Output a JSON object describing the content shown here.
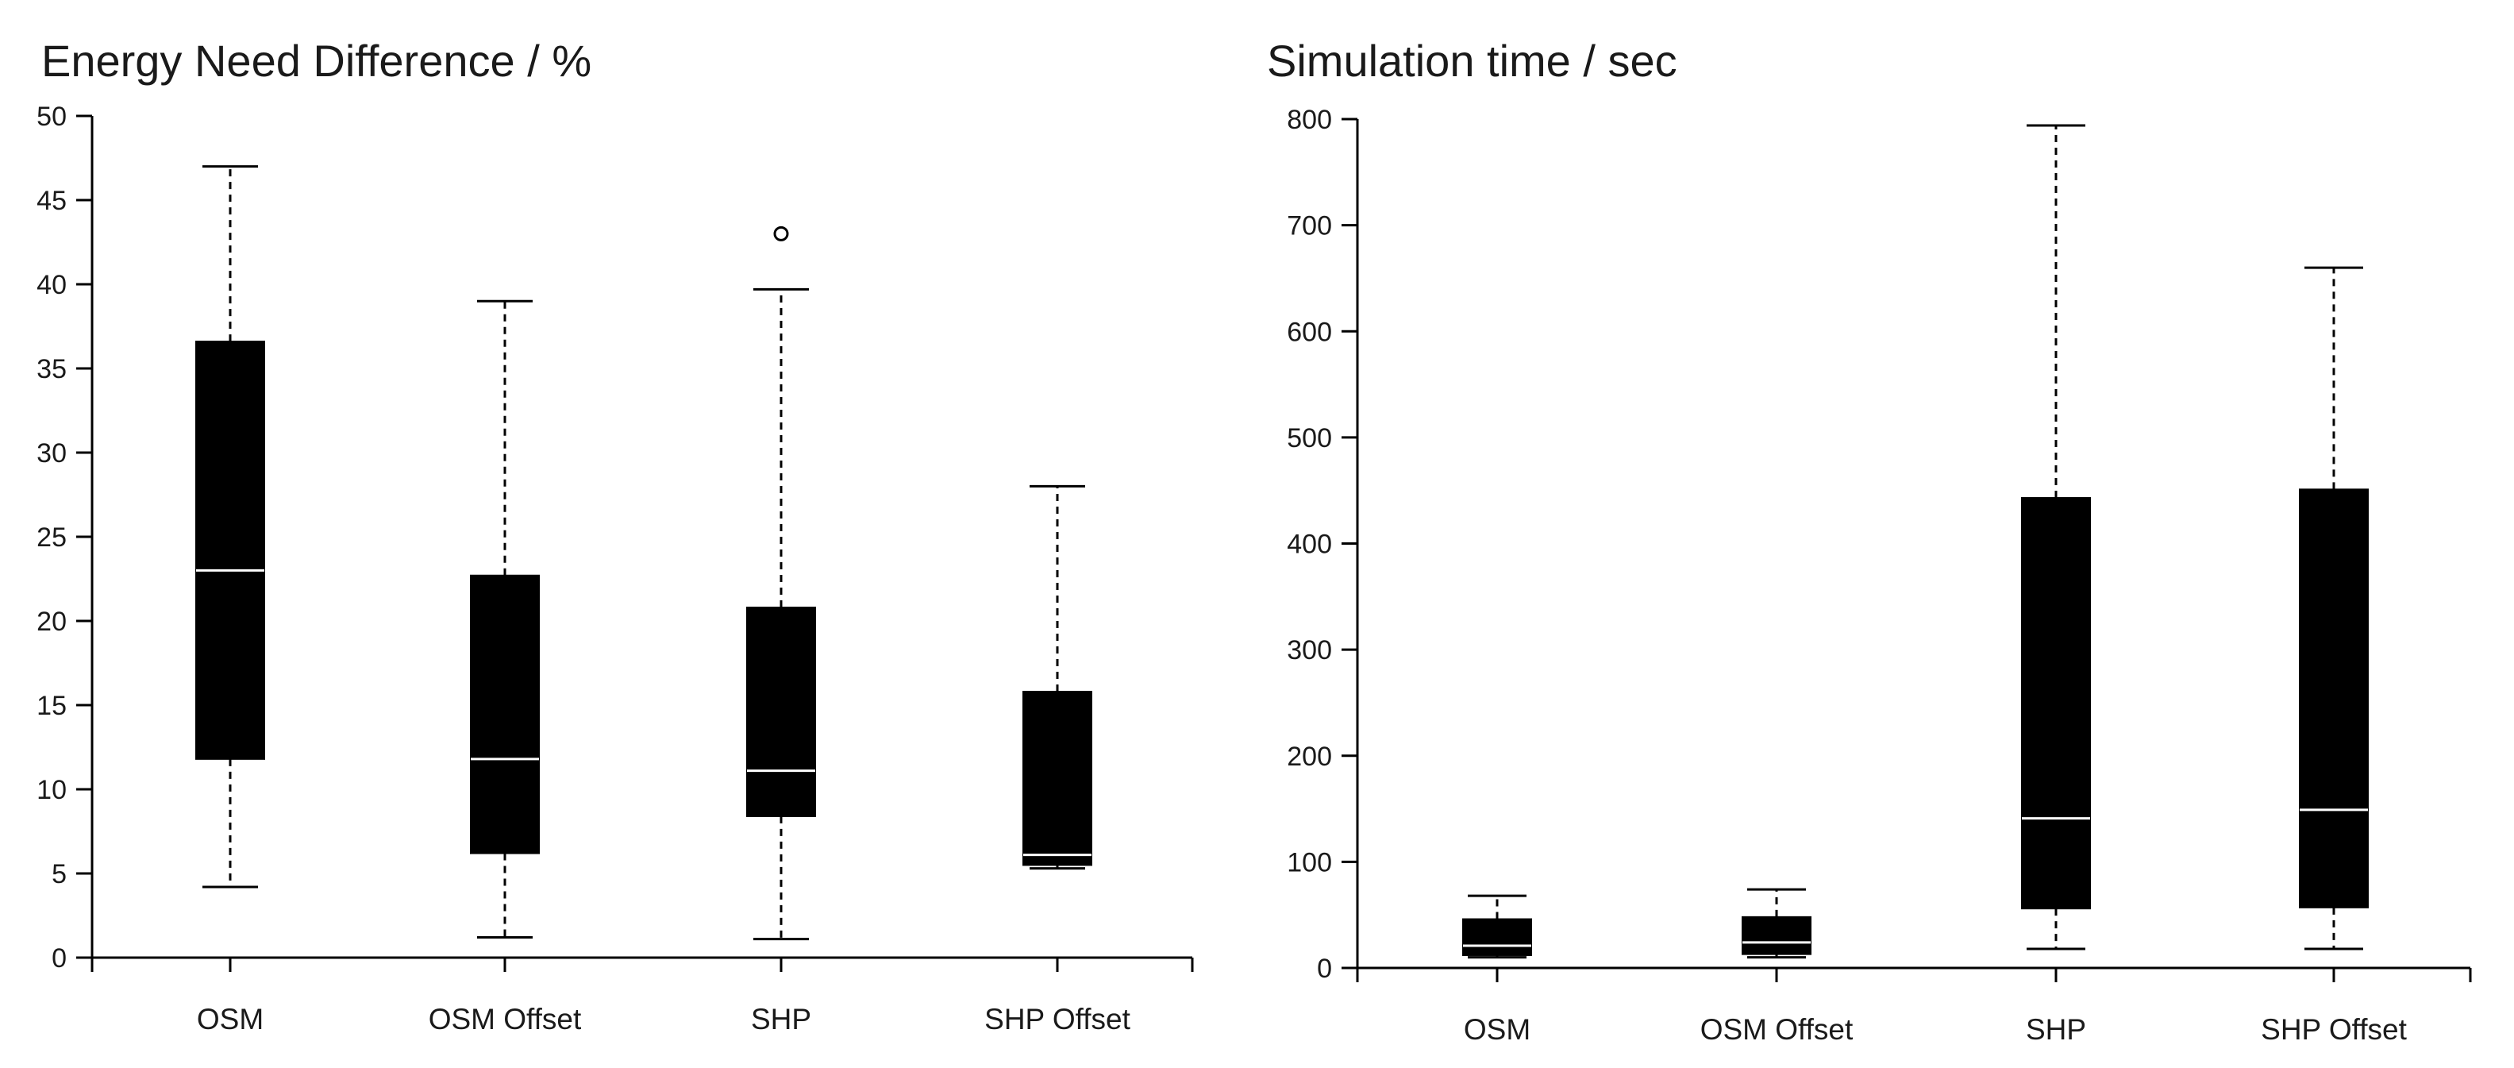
{
  "chart_data": [
    {
      "type": "box",
      "title": "Energy Need Difference / %",
      "xlabel": "",
      "ylabel": "",
      "ylim": [
        0,
        50
      ],
      "yticks": [
        0,
        5,
        10,
        15,
        20,
        25,
        30,
        35,
        40,
        45,
        50
      ],
      "categories": [
        "OSM",
        "OSM Offset",
        "SHP",
        "SHP Offset"
      ],
      "boxes": [
        {
          "name": "OSM",
          "whisker_low": 4.2,
          "q1": 11.8,
          "median": 23.0,
          "q3": 36.6,
          "whisker_high": 47.0,
          "outliers": []
        },
        {
          "name": "OSM Offset",
          "whisker_low": 1.2,
          "q1": 6.2,
          "median": 11.8,
          "q3": 22.7,
          "whisker_high": 39.0,
          "outliers": []
        },
        {
          "name": "SHP",
          "whisker_low": 1.1,
          "q1": 8.4,
          "median": 11.1,
          "q3": 20.8,
          "whisker_high": 39.7,
          "outliers": [
            43.0
          ]
        },
        {
          "name": "SHP Offset",
          "whisker_low": 5.3,
          "q1": 5.5,
          "median": 6.1,
          "q3": 15.8,
          "whisker_high": 28.0,
          "outliers": []
        }
      ],
      "colors": {
        "box": "#000000",
        "median": "#ffffff",
        "whisker": "#000000"
      }
    },
    {
      "type": "box",
      "title": "Simulation time / sec",
      "xlabel": "",
      "ylabel": "",
      "ylim": [
        0,
        800
      ],
      "yticks": [
        0,
        100,
        200,
        300,
        400,
        500,
        600,
        700,
        800
      ],
      "categories": [
        "OSM",
        "OSM Offset",
        "SHP",
        "SHP Offset"
      ],
      "boxes": [
        {
          "name": "OSM",
          "whisker_low": 10,
          "q1": 12,
          "median": 21,
          "q3": 46,
          "whisker_high": 68,
          "outliers": []
        },
        {
          "name": "OSM Offset",
          "whisker_low": 10,
          "q1": 13,
          "median": 24,
          "q3": 48,
          "whisker_high": 74,
          "outliers": []
        },
        {
          "name": "SHP",
          "whisker_low": 18,
          "q1": 56,
          "median": 141,
          "q3": 443,
          "whisker_high": 794,
          "outliers": []
        },
        {
          "name": "SHP Offset",
          "whisker_low": 18,
          "q1": 57,
          "median": 149,
          "q3": 451,
          "whisker_high": 660,
          "outliers": []
        }
      ],
      "colors": {
        "box": "#000000",
        "median": "#ffffff",
        "whisker": "#000000"
      }
    }
  ]
}
